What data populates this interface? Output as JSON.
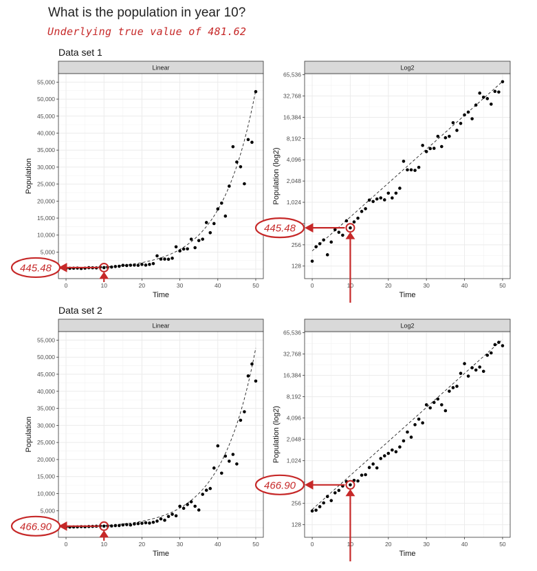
{
  "title": "What is the population in year 10?",
  "subtitle": "Underlying true value of 481.62",
  "annotation_color": "#c62828",
  "panels_linear": {
    "strip": "Linear",
    "xlabel": "Time",
    "ylabel": "Population",
    "xticks": [
      "0",
      "10",
      "20",
      "30",
      "40",
      "50"
    ],
    "yticks": [
      "0",
      "5,000",
      "10,000",
      "15,000",
      "20,000",
      "25,000",
      "30,000",
      "35,000",
      "40,000",
      "45,000",
      "50,000",
      "55,000"
    ]
  },
  "panels_log": {
    "strip": "Log2",
    "xlabel": "Time",
    "ylabel": "Population (log2)",
    "xticks": [
      "0",
      "10",
      "20",
      "30",
      "40",
      "50"
    ],
    "yticks": [
      "128",
      "256",
      "512",
      "1,024",
      "2,048",
      "4,096",
      "8,192",
      "16,384",
      "32,768",
      "65,536"
    ]
  },
  "chart_data": [
    {
      "dataset_label": "Data set 1",
      "callout": "445.48",
      "panels": [
        {
          "type": "scatter",
          "scale": "linear",
          "strip": "Linear",
          "xlabel": "Time",
          "ylabel": "Population",
          "xlim": [
            -2,
            52
          ],
          "ylim": [
            -2800,
            57500
          ],
          "fit": {
            "style": "dashed",
            "form": "exponential",
            "a": 210,
            "b": 0.1105
          },
          "highlight_x": 10,
          "highlight_y": 445.48,
          "x": [
            0,
            1,
            2,
            3,
            4,
            5,
            6,
            7,
            8,
            9,
            10,
            11,
            12,
            13,
            14,
            15,
            16,
            17,
            18,
            19,
            20,
            21,
            22,
            23,
            24,
            25,
            26,
            27,
            28,
            29,
            30,
            31,
            32,
            33,
            34,
            35,
            36,
            37,
            38,
            39,
            40,
            41,
            42,
            43,
            44,
            45,
            46,
            47,
            48,
            49,
            50
          ],
          "y": [
            150,
            240,
            265,
            300,
            185,
            280,
            420,
            385,
            350,
            560,
            445,
            540,
            610,
            760,
            830,
            1100,
            1050,
            1140,
            1180,
            1110,
            1380,
            1180,
            1380,
            1620,
            3900,
            2950,
            2950,
            2900,
            3200,
            6550,
            5350,
            5900,
            5950,
            8800,
            6300,
            8400,
            8800,
            13700,
            10700,
            13400,
            17700,
            19400,
            15600,
            24400,
            36000,
            31500,
            30100,
            25100,
            38100,
            37300,
            52200
          ]
        },
        {
          "type": "scatter",
          "scale": "log2",
          "strip": "Log2",
          "xlabel": "Time",
          "ylabel": "Population (log2)",
          "xlim": [
            -2,
            52
          ],
          "ylim": [
            85,
            68000
          ],
          "fit": {
            "style": "dashed",
            "form": "exponential",
            "a": 210,
            "b": 0.1105
          },
          "highlight_x": 10,
          "highlight_y": 445.48,
          "x": [
            0,
            1,
            2,
            3,
            4,
            5,
            6,
            7,
            8,
            9,
            10,
            11,
            12,
            13,
            14,
            15,
            16,
            17,
            18,
            19,
            20,
            21,
            22,
            23,
            24,
            25,
            26,
            27,
            28,
            29,
            30,
            31,
            32,
            33,
            34,
            35,
            36,
            37,
            38,
            39,
            40,
            41,
            42,
            43,
            44,
            45,
            46,
            47,
            48,
            49,
            50
          ],
          "y": [
            150,
            240,
            265,
            300,
            185,
            280,
            420,
            385,
            350,
            560,
            445,
            540,
            610,
            760,
            830,
            1100,
            1050,
            1140,
            1180,
            1110,
            1380,
            1180,
            1380,
            1620,
            3900,
            2950,
            2950,
            2900,
            3200,
            6550,
            5350,
            5900,
            5950,
            8800,
            6300,
            8400,
            8800,
            13700,
            10700,
            13400,
            17700,
            19400,
            15600,
            24400,
            36000,
            31500,
            30100,
            25100,
            38100,
            37300,
            52200
          ]
        }
      ]
    },
    {
      "dataset_label": "Data set 2",
      "callout": "466.90",
      "panels": [
        {
          "type": "scatter",
          "scale": "linear",
          "strip": "Linear",
          "xlabel": "Time",
          "ylabel": "Population",
          "xlim": [
            -2,
            52
          ],
          "ylim": [
            -2800,
            57500
          ],
          "fit": {
            "style": "dashed",
            "form": "exponential",
            "a": 210,
            "b": 0.1105
          },
          "highlight_x": 10,
          "highlight_y": 466.9,
          "x": [
            0,
            1,
            2,
            3,
            4,
            5,
            6,
            7,
            8,
            9,
            10,
            11,
            12,
            13,
            14,
            15,
            16,
            17,
            18,
            19,
            20,
            21,
            22,
            23,
            24,
            25,
            26,
            27,
            28,
            29,
            30,
            31,
            32,
            33,
            34,
            35,
            36,
            37,
            38,
            39,
            40,
            41,
            42,
            43,
            44,
            45,
            46,
            47,
            48,
            49,
            50
          ],
          "y": [
            200,
            205,
            230,
            260,
            320,
            280,
            360,
            390,
            450,
            520,
            467,
            540,
            530,
            640,
            650,
            820,
            920,
            810,
            1100,
            1200,
            1300,
            1450,
            1370,
            1600,
            1950,
            2600,
            2200,
            3300,
            3950,
            3500,
            6300,
            5700,
            6800,
            7600,
            6300,
            5200,
            9800,
            11000,
            11500,
            17500,
            24000,
            16000,
            21000,
            19500,
            21500,
            18700,
            31500,
            34000,
            44500,
            48000,
            43000
          ]
        },
        {
          "type": "scatter",
          "scale": "log2",
          "strip": "Log2",
          "xlabel": "Time",
          "ylabel": "Population (log2)",
          "xlim": [
            -2,
            52
          ],
          "ylim": [
            85,
            68000
          ],
          "fit": {
            "style": "dashed",
            "form": "exponential",
            "a": 210,
            "b": 0.1105
          },
          "highlight_x": 10,
          "highlight_y": 466.9,
          "x": [
            0,
            1,
            2,
            3,
            4,
            5,
            6,
            7,
            8,
            9,
            10,
            11,
            12,
            13,
            14,
            15,
            16,
            17,
            18,
            19,
            20,
            21,
            22,
            23,
            24,
            25,
            26,
            27,
            28,
            29,
            30,
            31,
            32,
            33,
            34,
            35,
            36,
            37,
            38,
            39,
            40,
            41,
            42,
            43,
            44,
            45,
            46,
            47,
            48,
            49,
            50
          ],
          "y": [
            200,
            205,
            230,
            260,
            320,
            280,
            360,
            390,
            450,
            520,
            467,
            540,
            530,
            640,
            650,
            820,
            920,
            810,
            1100,
            1200,
            1300,
            1450,
            1370,
            1600,
            1950,
            2600,
            2200,
            3300,
            3950,
            3500,
            6300,
            5700,
            6800,
            7600,
            6300,
            5200,
            9800,
            11000,
            11500,
            17500,
            24000,
            16000,
            21000,
            19500,
            21500,
            18700,
            31500,
            34000,
            44500,
            48000,
            43000
          ]
        }
      ]
    }
  ]
}
